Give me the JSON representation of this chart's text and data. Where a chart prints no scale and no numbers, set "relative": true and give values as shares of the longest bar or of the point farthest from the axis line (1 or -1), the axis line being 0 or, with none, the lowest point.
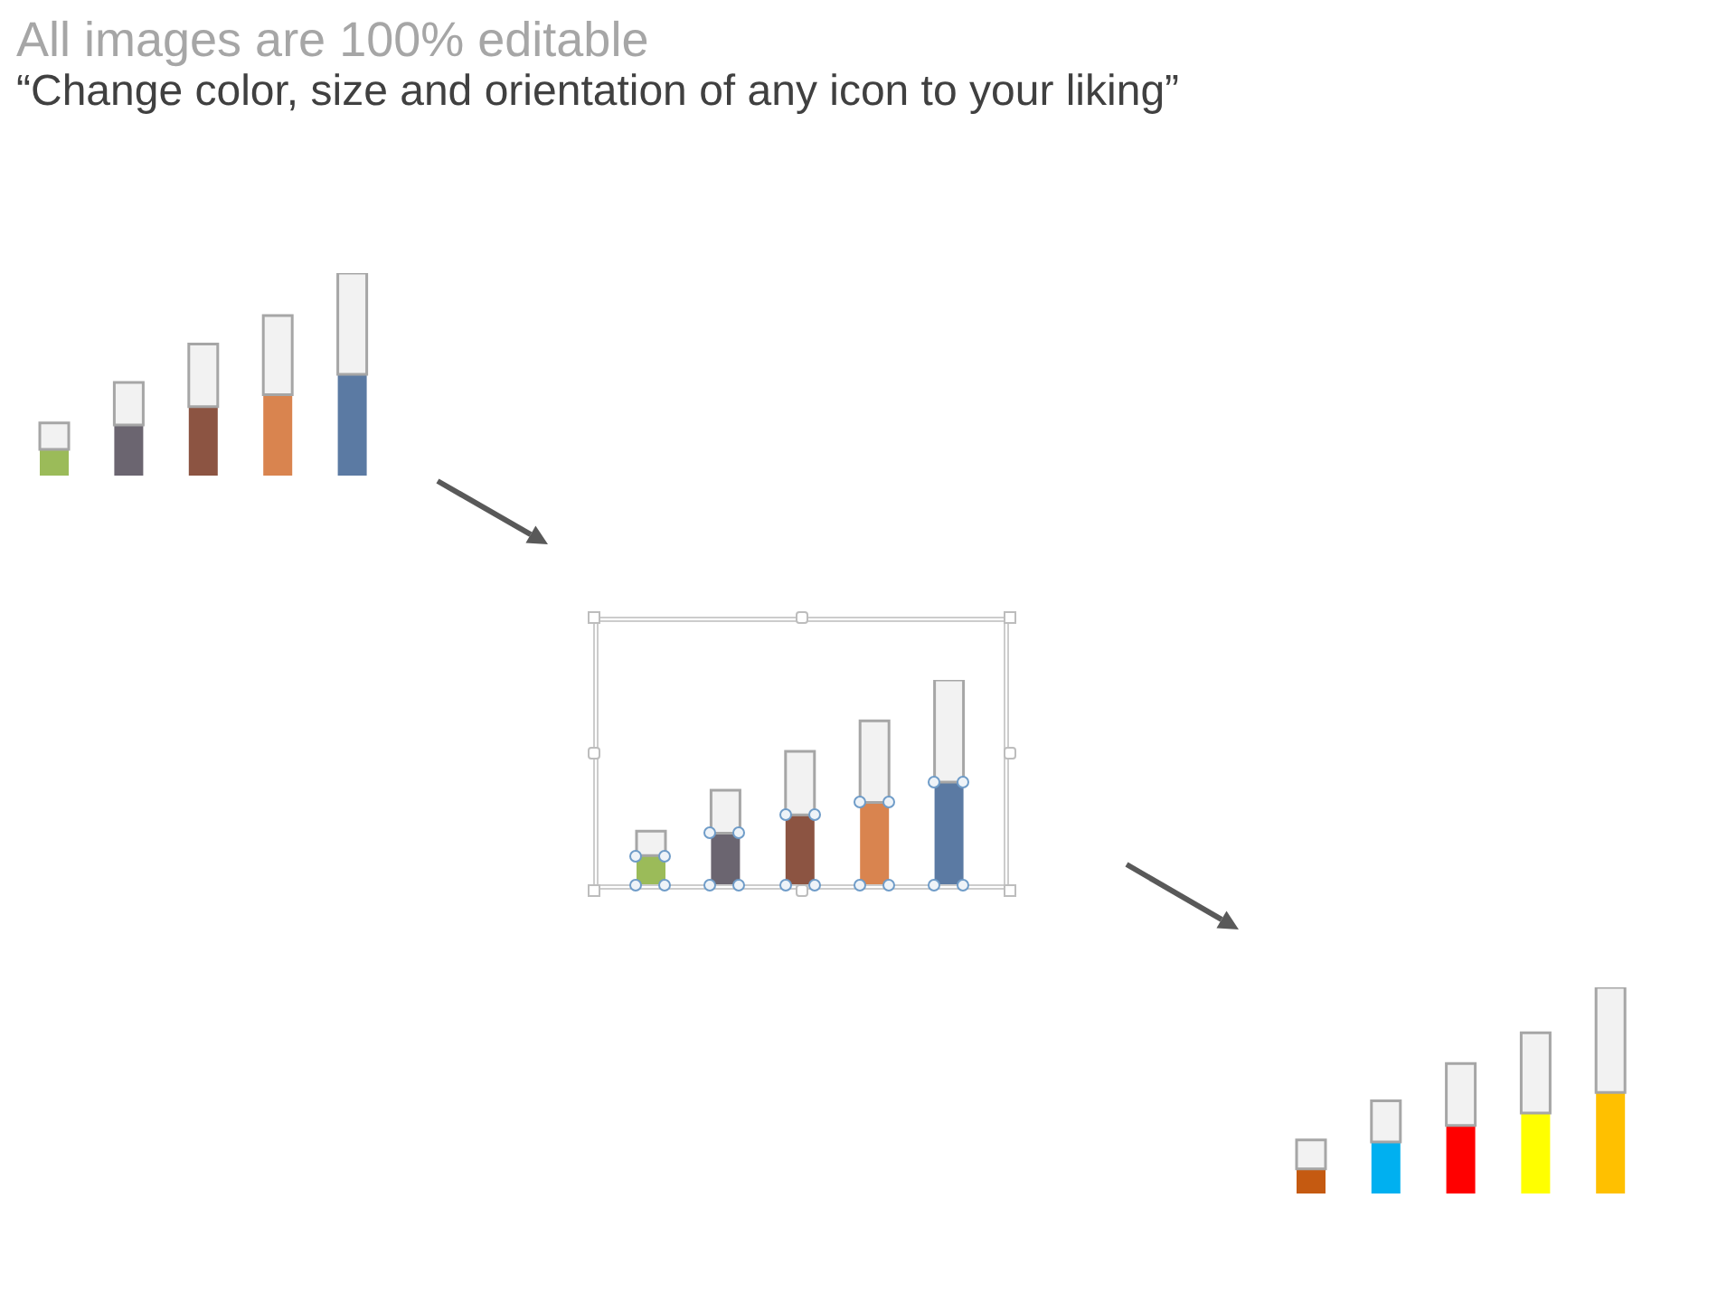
{
  "chart_data": [
    {
      "type": "other",
      "title": "All images are 100% editable",
      "subtitle": "“Change color, size and orientation of any icon to your liking”"
    },
    {
      "type": "bar",
      "relative": true,
      "stacked": true,
      "categories": [
        null,
        null,
        null,
        null,
        null
      ],
      "series": [
        {
          "colors": [
            "#9bbb59",
            "#6b6570",
            "#8c5442",
            "#d9844f",
            "#5b7aa3"
          ],
          "values": [
            0.13,
            0.25,
            0.34,
            0.4,
            0.5
          ]
        },
        {
          "color": "#f2f2f2",
          "values": [
            0.13,
            0.21,
            0.31,
            0.39,
            0.5
          ]
        }
      ]
    },
    {
      "type": "bar",
      "relative": true,
      "stacked": true,
      "categories": [
        null,
        null,
        null,
        null,
        null
      ],
      "series": [
        {
          "colors": [
            "#9bbb59",
            "#6b6570",
            "#8c5442",
            "#d9844f",
            "#5b7aa3"
          ],
          "values": [
            0.14,
            0.25,
            0.34,
            0.4,
            0.5
          ]
        },
        {
          "color": "#f2f2f2",
          "values": [
            0.12,
            0.21,
            0.31,
            0.4,
            0.5
          ]
        }
      ]
    },
    {
      "type": "bar",
      "relative": true,
      "stacked": true,
      "categories": [
        null,
        null,
        null,
        null,
        null
      ],
      "series": [
        {
          "colors": [
            "#c55a11",
            "#00b0f0",
            "#ff0000",
            "#ffff00",
            "#ffc000"
          ],
          "values": [
            0.12,
            0.25,
            0.33,
            0.39,
            0.49
          ]
        },
        {
          "color": "#f2f2f2",
          "values": [
            0.14,
            0.2,
            0.3,
            0.39,
            0.51
          ]
        }
      ]
    }
  ]
}
